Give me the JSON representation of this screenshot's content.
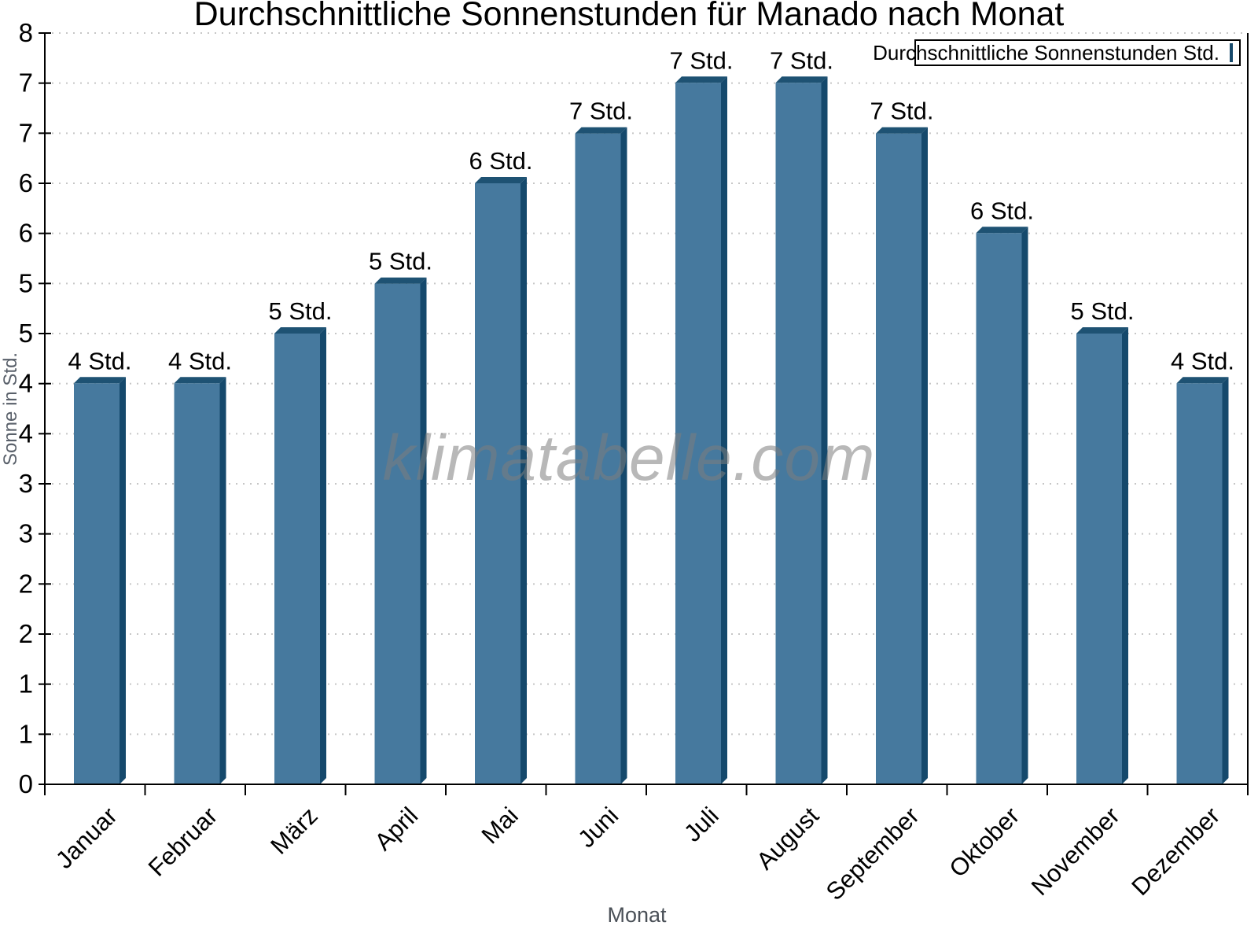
{
  "watermark": "klimatabelle.com",
  "colors": {
    "bar_face": "#46799E",
    "bar_side": "#15496C",
    "bar_top": "#1E5273",
    "legend_swatch": "#4A7EA5",
    "legend_swatch_border": "#16496B",
    "grid_line": "#c6c6c6",
    "axis_line": "#000000",
    "tick_label": "#000000",
    "bar_value_label": "#000000",
    "axis_title_gray": "#59606A"
  },
  "chart_data": {
    "type": "bar",
    "title": "Durchschnittliche Sonnenstunden für Manado nach Monat",
    "xlabel": "Monat",
    "ylabel": "Sonne in Std.",
    "categories": [
      "Januar",
      "Februar",
      "März",
      "April",
      "Mai",
      "Juni",
      "Juli",
      "August",
      "September",
      "Oktober",
      "November",
      "Dezember"
    ],
    "values": [
      4,
      4,
      5,
      5,
      6,
      7,
      7,
      7,
      7,
      6,
      5,
      4
    ],
    "bar_value_labels": [
      "4 Std.",
      "4 Std.",
      "5 Std.",
      "5 Std.",
      "6 Std.",
      "7 Std.",
      "7 Std.",
      "7 Std.",
      "7 Std.",
      "6 Std.",
      "5 Std.",
      "4 Std."
    ],
    "values_precise_std": [
      4.27,
      4.27,
      4.8,
      5.33,
      6.4,
      6.93,
      7.47,
      7.47,
      6.93,
      5.87,
      4.8,
      4.27
    ],
    "ylim": [
      0,
      8
    ],
    "y_tick_labels_bottom_to_top": [
      "0",
      "1",
      "1",
      "2",
      "2",
      "3",
      "3",
      "4",
      "4",
      "5",
      "5",
      "6",
      "6",
      "7",
      "7",
      "8"
    ],
    "grid": "horizontal-dotted",
    "legend": [
      "Durchschnittliche Sonnenstunden Std."
    ],
    "legend_position": "top-right"
  }
}
